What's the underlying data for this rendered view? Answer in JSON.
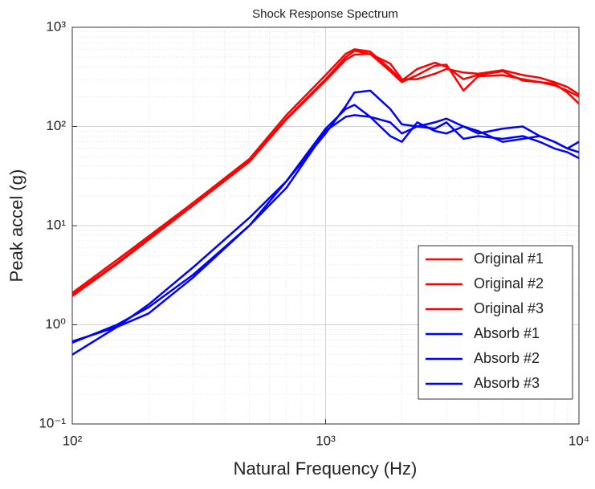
{
  "chart_data": {
    "type": "line",
    "title": "Shock Response Spectrum",
    "x_label": "Natural Frequency (Hz)",
    "y_label": "Peak accel (g)",
    "x": [
      100,
      150,
      200,
      300,
      500,
      700,
      1000,
      1200,
      1300,
      1500,
      1800,
      2000,
      2300,
      2700,
      3000,
      3500,
      4000,
      5000,
      6000,
      7000,
      8000,
      9000,
      10000
    ],
    "series": [
      {
        "name": "Original #1",
        "color": "#ff0000",
        "values": [
          2.1,
          4.5,
          7.8,
          17,
          47,
          130,
          330,
          540,
          600,
          570,
          380,
          290,
          380,
          440,
          400,
          300,
          330,
          360,
          290,
          280,
          260,
          230,
          200
        ]
      },
      {
        "name": "Original #2",
        "color": "#ff0000",
        "values": [
          2.0,
          4.2,
          7.4,
          16,
          45,
          120,
          300,
          500,
          580,
          540,
          360,
          280,
          330,
          410,
          420,
          230,
          320,
          330,
          300,
          280,
          270,
          220,
          170
        ]
      },
      {
        "name": "Original #3",
        "color": "#ff0000",
        "values": [
          1.95,
          4.1,
          7.2,
          16,
          44,
          118,
          290,
          470,
          530,
          540,
          430,
          300,
          300,
          340,
          380,
          350,
          340,
          370,
          330,
          310,
          280,
          250,
          210
        ]
      },
      {
        "name": "Absorb #1",
        "color": "#0000ff",
        "values": [
          0.66,
          1.0,
          1.5,
          3.2,
          10,
          28,
          85,
          160,
          220,
          230,
          150,
          105,
          100,
          110,
          120,
          100,
          85,
          95,
          100,
          80,
          70,
          60,
          55
        ]
      },
      {
        "name": "Absorb #2",
        "color": "#0000ff",
        "values": [
          0.5,
          0.95,
          1.6,
          3.8,
          12,
          28,
          95,
          150,
          165,
          125,
          80,
          70,
          110,
          90,
          85,
          100,
          90,
          70,
          75,
          80,
          70,
          60,
          70
        ]
      },
      {
        "name": "Absorb #3",
        "color": "#0000ff",
        "values": [
          0.68,
          0.95,
          1.3,
          3.0,
          10,
          24,
          90,
          125,
          130,
          125,
          110,
          85,
          100,
          95,
          110,
          75,
          80,
          75,
          80,
          70,
          60,
          55,
          48
        ]
      }
    ],
    "xlim": [
      100,
      10000
    ],
    "ylim": [
      0.1,
      1000
    ],
    "xticks": [
      {
        "value": 100,
        "label": "10²"
      },
      {
        "value": 1000,
        "label": "10³"
      },
      {
        "value": 10000,
        "label": "10⁴"
      }
    ],
    "yticks": [
      {
        "value": 0.1,
        "label": "10⁻¹"
      },
      {
        "value": 1,
        "label": "10⁰"
      },
      {
        "value": 10,
        "label": "10¹"
      },
      {
        "value": 100,
        "label": "10²"
      },
      {
        "value": 1000,
        "label": "10³"
      }
    ],
    "x_scale": "log",
    "y_scale": "log",
    "grid": true,
    "minor_grid": true,
    "legend": "lower right"
  }
}
